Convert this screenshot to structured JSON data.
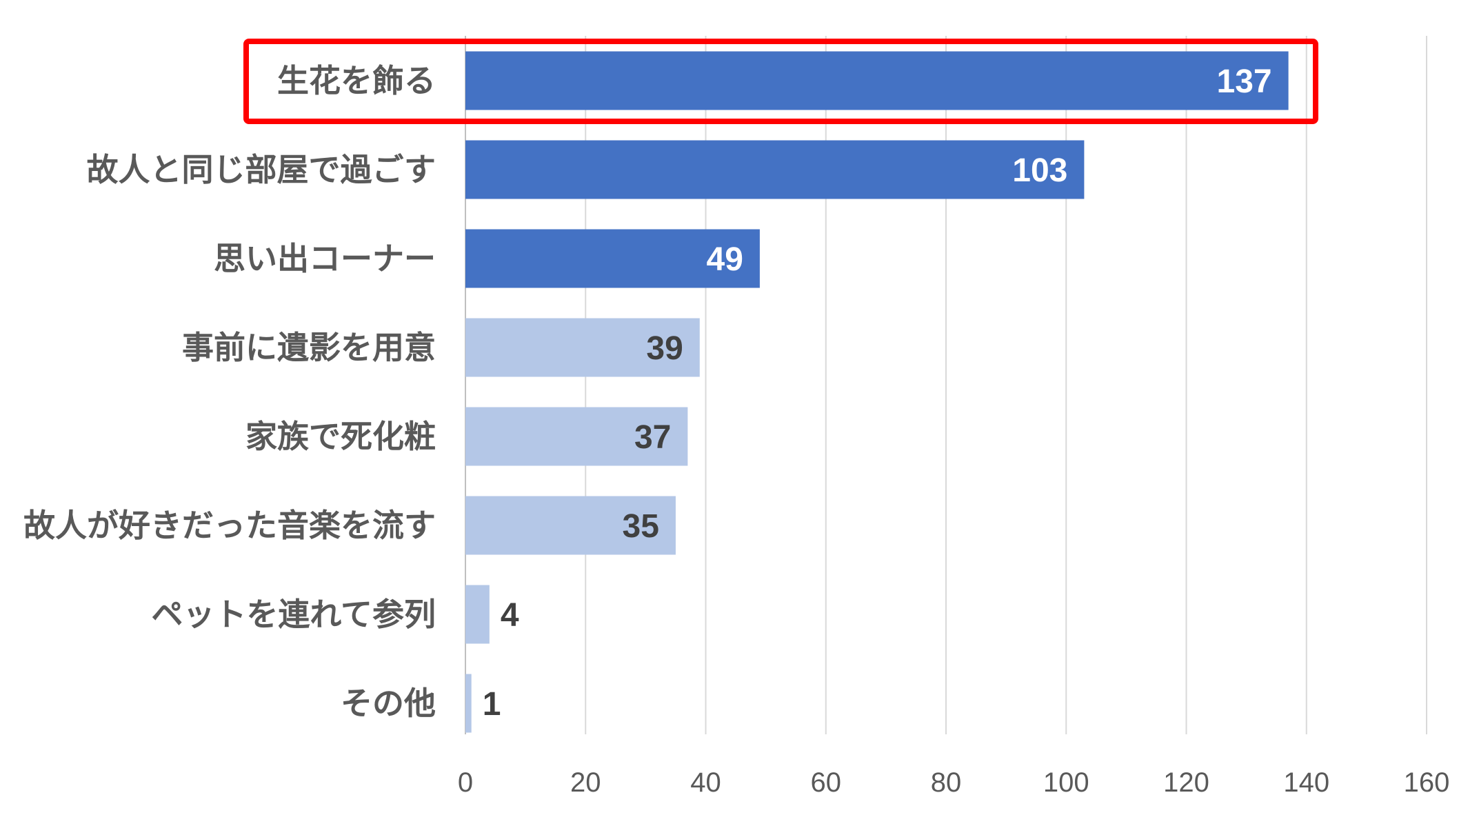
{
  "chart_data": {
    "type": "bar",
    "orientation": "horizontal",
    "categories": [
      "生花を飾る",
      "故人と同じ部屋で過ごす",
      "思い出コーナー",
      "事前に遺影を用意",
      "家族で死化粧",
      "故人が好きだった音楽を流す",
      "ペットを連れて参列",
      "その他"
    ],
    "values": [
      137,
      103,
      49,
      39,
      37,
      35,
      4,
      1
    ],
    "value_labels": [
      "137",
      "103",
      "49",
      "39",
      "37",
      "35",
      "4",
      "1"
    ],
    "xlim": [
      0,
      160
    ],
    "xticks": [
      0,
      20,
      40,
      60,
      80,
      100,
      120,
      140,
      160
    ],
    "xtick_labels": [
      "0",
      "20",
      "40",
      "60",
      "80",
      "100",
      "120",
      "140",
      "160"
    ],
    "grid": "vertical",
    "highlighted_category": "生花を飾る",
    "colors": {
      "top_three_bar": "#4472C4",
      "other_bar": "#B4C7E7",
      "highlight_frame": "#FF0000",
      "gridline": "#D9D9D9",
      "axis_text": "#595959",
      "label_on_dark": "#FFFFFF",
      "label_on_light": "#404040"
    }
  }
}
